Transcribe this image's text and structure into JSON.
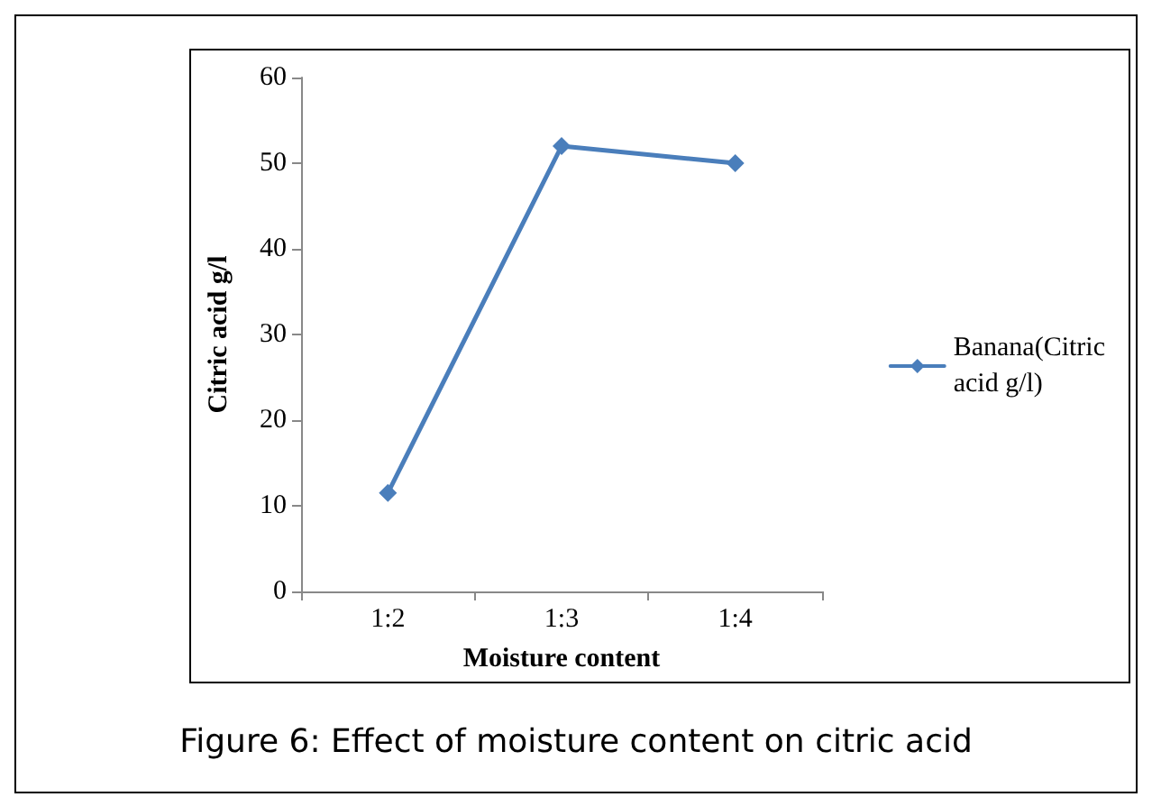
{
  "chart_data": {
    "type": "line",
    "xlabel": "Moisture content",
    "ylabel": "Citric acid g/l",
    "categories": [
      "1:2",
      "1:3",
      "1:4"
    ],
    "series": [
      {
        "name": "Banana(Citric\nacid g/l)",
        "color": "#4a7ebb",
        "values": [
          11.5,
          52,
          50
        ]
      }
    ],
    "ylim": [
      0,
      60
    ],
    "yticks": [
      0,
      10,
      20,
      30,
      40,
      50,
      60
    ],
    "grid": false,
    "legend": "right",
    "marker": "diamond",
    "line_style": "solid",
    "annotations": [
      "Figure 6: Effect of moisture content on citric acid"
    ]
  }
}
